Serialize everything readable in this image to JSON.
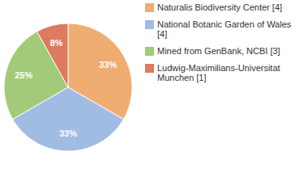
{
  "chart_data": {
    "type": "pie",
    "categories": [
      "Naturalis Biodiversity Center [4]",
      "National Botanic Garden of Wales [4]",
      "Mined from GenBank, NCBI [3]",
      "Ludwig-Maximilians-Universitat Munchen [1]"
    ],
    "values": [
      33,
      33,
      25,
      8
    ],
    "colors": [
      "#f0ad72",
      "#a0bce2",
      "#a2cb79",
      "#de7a5e"
    ],
    "data_labels": true,
    "legend": "top-right"
  }
}
